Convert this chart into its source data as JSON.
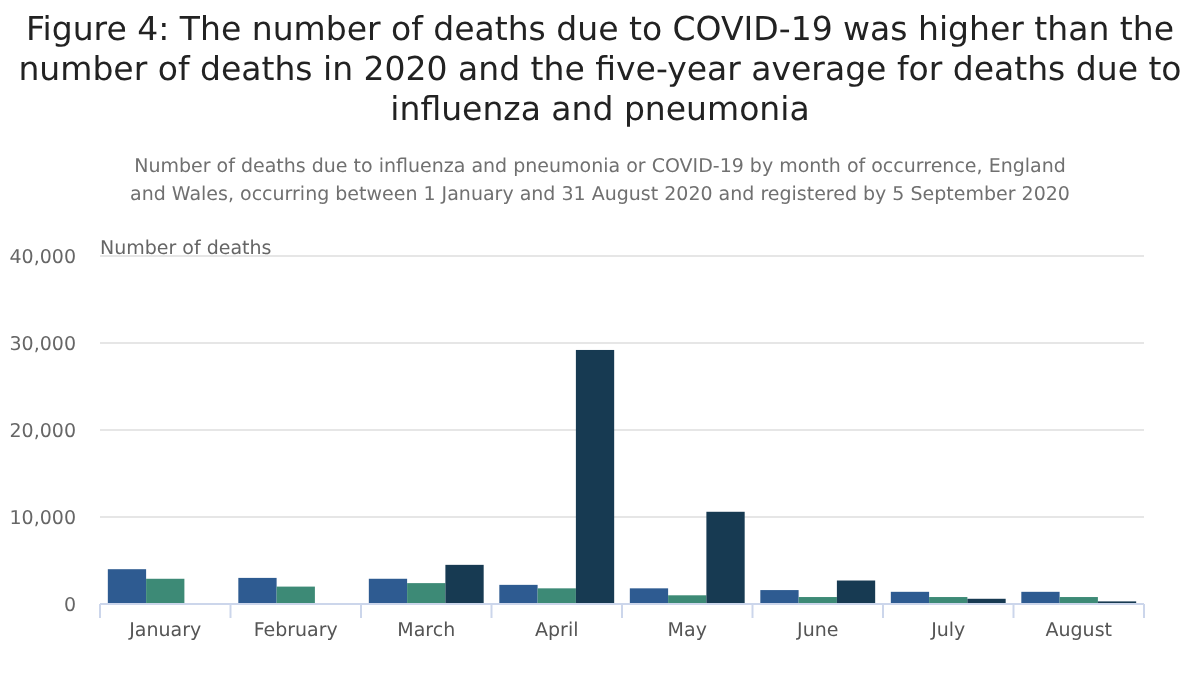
{
  "chart_data": {
    "type": "bar",
    "title": "Figure 4: The number of deaths due to COVID-19 was higher than the number of deaths in 2020 and the five-year average for deaths due to influenza and pneumonia",
    "subtitle": "Number of deaths due to influenza and pneumonia or COVID-19 by month of occurrence, England and Wales, occurring between 1 January and 31 August 2020 and registered by 5 September 2020",
    "ylabel": "Number of deaths",
    "categories": [
      "January",
      "February",
      "March",
      "April",
      "May",
      "June",
      "July",
      "August"
    ],
    "series": [
      {
        "color": "#2e5b91",
        "values": [
          4000,
          3000,
          2900,
          2200,
          1800,
          1600,
          1400,
          1400
        ]
      },
      {
        "color": "#3d8a76",
        "values": [
          2900,
          2000,
          2400,
          1800,
          1000,
          800,
          800,
          800
        ]
      },
      {
        "color": "#173a52",
        "values": [
          0,
          0,
          4500,
          29200,
          10600,
          2700,
          600,
          300
        ]
      }
    ],
    "ylim": [
      0,
      40000
    ],
    "yticks": [
      {
        "value": 0,
        "label": "0"
      },
      {
        "value": 10000,
        "label": "10,000"
      },
      {
        "value": 20000,
        "label": "20,000"
      },
      {
        "value": 30000,
        "label": "30,000"
      },
      {
        "value": 40000,
        "label": "40,000"
      }
    ],
    "grid": "y"
  }
}
